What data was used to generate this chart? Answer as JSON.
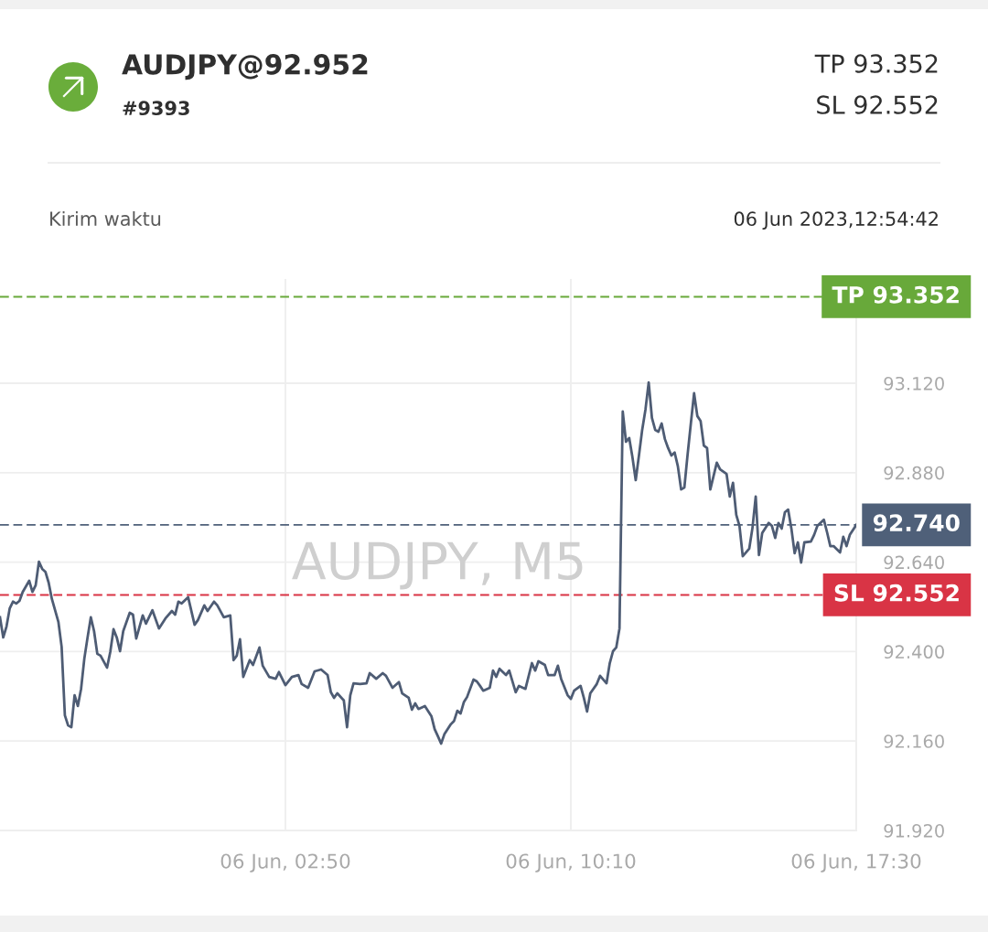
{
  "chart_data": {
    "type": "line",
    "title": "AUDJPY@92.952",
    "subtitle": "#9393",
    "annotations": [
      "TP 93.352",
      "SL 92.552",
      "Kirim waktu",
      "06 Jun 2023,12:54:42",
      "AUDJPY, M5"
    ],
    "color": "#4e5c74",
    "line_style": "solid",
    "grid": true,
    "x": [
      "2023-06-05T19:30",
      "2023-06-05T19:35",
      "2023-06-05T19:40",
      "2023-06-05T19:45",
      "2023-06-05T19:50",
      "2023-06-05T19:55",
      "2023-06-05T20:00",
      "2023-06-05T20:05",
      "2023-06-05T20:15",
      "2023-06-05T20:20",
      "2023-06-05T20:25",
      "2023-06-05T20:30",
      "2023-06-05T20:35",
      "2023-06-05T20:40",
      "2023-06-05T20:45",
      "2023-06-05T20:50",
      "2023-06-05T21:00",
      "2023-06-05T21:05",
      "2023-06-05T21:10",
      "2023-06-05T21:15",
      "2023-06-05T21:20",
      "2023-06-05T21:25",
      "2023-06-05T21:30",
      "2023-06-05T21:35",
      "2023-06-05T21:40",
      "2023-06-05T21:45",
      "2023-06-05T21:50",
      "2023-06-05T21:55",
      "2023-06-05T22:00",
      "2023-06-05T22:05",
      "2023-06-05T22:15",
      "2023-06-05T22:20",
      "2023-06-05T22:25",
      "2023-06-05T22:30",
      "2023-06-05T22:35",
      "2023-06-05T22:40",
      "2023-06-05T22:50",
      "2023-06-05T22:55",
      "2023-06-05T23:00",
      "2023-06-05T23:10",
      "2023-06-05T23:15",
      "2023-06-05T23:25",
      "2023-06-05T23:35",
      "2023-06-05T23:45",
      "2023-06-05T23:55",
      "2023-06-06T00:00",
      "2023-06-06T00:05",
      "2023-06-06T00:10",
      "2023-06-06T00:20",
      "2023-06-06T00:30",
      "2023-06-06T00:35",
      "2023-06-06T00:45",
      "2023-06-06T00:50",
      "2023-06-06T01:00",
      "2023-06-06T01:05",
      "2023-06-06T01:15",
      "2023-06-06T01:25",
      "2023-06-06T01:30",
      "2023-06-06T01:35",
      "2023-06-06T01:40",
      "2023-06-06T01:45",
      "2023-06-06T01:55",
      "2023-06-06T02:00",
      "2023-06-06T02:10",
      "2023-06-06T02:15",
      "2023-06-06T02:25",
      "2023-06-06T02:35",
      "2023-06-06T02:40",
      "2023-06-06T02:50",
      "2023-06-06T03:00",
      "2023-06-06T03:10",
      "2023-06-06T03:15",
      "2023-06-06T03:25",
      "2023-06-06T03:35",
      "2023-06-06T03:45",
      "2023-06-06T03:55",
      "2023-06-06T04:00",
      "2023-06-06T04:05",
      "2023-06-06T04:10",
      "2023-06-06T04:20",
      "2023-06-06T04:25",
      "2023-06-06T04:30",
      "2023-06-06T04:35",
      "2023-06-06T04:45",
      "2023-06-06T04:55",
      "2023-06-06T05:00",
      "2023-06-06T05:10",
      "2023-06-06T05:20",
      "2023-06-06T05:25",
      "2023-06-06T05:35",
      "2023-06-06T05:45",
      "2023-06-06T05:50",
      "2023-06-06T06:00",
      "2023-06-06T06:05",
      "2023-06-06T06:10",
      "2023-06-06T06:15",
      "2023-06-06T06:25",
      "2023-06-06T06:35",
      "2023-06-06T06:40",
      "2023-06-06T06:45",
      "2023-06-06T06:50",
      "2023-06-06T06:55",
      "2023-06-06T07:05",
      "2023-06-06T07:10",
      "2023-06-06T07:15",
      "2023-06-06T07:20",
      "2023-06-06T07:25",
      "2023-06-06T07:30",
      "2023-06-06T07:40",
      "2023-06-06T07:45",
      "2023-06-06T07:50",
      "2023-06-06T07:55",
      "2023-06-06T08:05",
      "2023-06-06T08:10",
      "2023-06-06T08:15",
      "2023-06-06T08:20",
      "2023-06-06T08:30",
      "2023-06-06T08:35",
      "2023-06-06T08:45",
      "2023-06-06T08:50",
      "2023-06-06T09:00",
      "2023-06-06T09:10",
      "2023-06-06T09:15",
      "2023-06-06T09:20",
      "2023-06-06T09:30",
      "2023-06-06T09:35",
      "2023-06-06T09:45",
      "2023-06-06T09:50",
      "2023-06-06T09:55",
      "2023-06-06T10:05",
      "2023-06-06T10:10",
      "2023-06-06T10:15",
      "2023-06-06T10:25",
      "2023-06-06T10:30",
      "2023-06-06T10:35",
      "2023-06-06T10:40",
      "2023-06-06T10:50",
      "2023-06-06T10:55",
      "2023-06-06T11:05",
      "2023-06-06T11:10",
      "2023-06-06T11:15",
      "2023-06-06T11:20",
      "2023-06-06T11:25",
      "2023-06-06T11:30",
      "2023-06-06T11:35",
      "2023-06-06T11:40",
      "2023-06-06T11:45",
      "2023-06-06T11:50",
      "2023-06-06T11:55",
      "2023-06-06T12:00",
      "2023-06-06T12:05",
      "2023-06-06T12:10",
      "2023-06-06T12:15",
      "2023-06-06T12:20",
      "2023-06-06T12:25",
      "2023-06-06T12:30",
      "2023-06-06T12:35",
      "2023-06-06T12:40",
      "2023-06-06T12:45",
      "2023-06-06T12:50",
      "2023-06-06T12:55",
      "2023-06-06T13:00",
      "2023-06-06T13:05",
      "2023-06-06T13:10",
      "2023-06-06T13:15",
      "2023-06-06T13:20",
      "2023-06-06T13:25",
      "2023-06-06T13:30",
      "2023-06-06T13:35",
      "2023-06-06T13:40",
      "2023-06-06T13:45",
      "2023-06-06T13:55",
      "2023-06-06T14:00",
      "2023-06-06T14:10",
      "2023-06-06T14:15",
      "2023-06-06T14:20",
      "2023-06-06T14:25",
      "2023-06-06T14:30",
      "2023-06-06T14:35",
      "2023-06-06T14:45",
      "2023-06-06T14:50",
      "2023-06-06T14:55",
      "2023-06-06T15:00",
      "2023-06-06T15:05",
      "2023-06-06T15:15",
      "2023-06-06T15:20",
      "2023-06-06T15:25",
      "2023-06-06T15:30",
      "2023-06-06T15:35",
      "2023-06-06T15:40",
      "2023-06-06T15:45",
      "2023-06-06T15:50",
      "2023-06-06T15:55",
      "2023-06-06T16:00",
      "2023-06-06T16:05",
      "2023-06-06T16:10",
      "2023-06-06T16:20",
      "2023-06-06T16:25",
      "2023-06-06T16:30",
      "2023-06-06T16:40",
      "2023-06-06T16:45",
      "2023-06-06T16:50",
      "2023-06-06T16:55",
      "2023-06-06T17:05",
      "2023-06-06T17:10",
      "2023-06-06T17:15",
      "2023-06-06T17:20",
      "2023-06-06T17:30"
    ],
    "values": [
      92.492,
      92.438,
      92.467,
      92.516,
      92.534,
      92.529,
      92.536,
      92.56,
      92.59,
      92.56,
      92.578,
      92.641,
      92.622,
      92.614,
      92.585,
      92.541,
      92.48,
      92.413,
      92.229,
      92.202,
      92.197,
      92.283,
      92.254,
      92.3,
      92.381,
      92.438,
      92.492,
      92.455,
      92.394,
      92.389,
      92.357,
      92.399,
      92.46,
      92.438,
      92.401,
      92.455,
      92.504,
      92.499,
      92.435,
      92.497,
      92.475,
      92.511,
      92.462,
      92.489,
      92.509,
      92.499,
      92.534,
      92.529,
      92.546,
      92.472,
      92.484,
      92.524,
      92.509,
      92.534,
      92.524,
      92.492,
      92.497,
      92.377,
      92.389,
      92.433,
      92.332,
      92.377,
      92.364,
      92.411,
      92.362,
      92.332,
      92.327,
      92.345,
      92.31,
      92.332,
      92.337,
      92.313,
      92.303,
      92.347,
      92.352,
      92.337,
      92.291,
      92.276,
      92.288,
      92.269,
      92.197,
      92.283,
      92.315,
      92.313,
      92.315,
      92.342,
      92.327,
      92.342,
      92.335,
      92.303,
      92.318,
      92.288,
      92.276,
      92.244,
      92.261,
      92.246,
      92.254,
      92.227,
      92.192,
      92.173,
      92.153,
      92.178,
      92.205,
      92.214,
      92.241,
      92.234,
      92.264,
      92.278,
      92.325,
      92.32,
      92.308,
      92.295,
      92.303,
      92.349,
      92.332,
      92.354,
      92.337,
      92.349,
      92.291,
      92.308,
      92.3,
      92.369,
      92.349,
      92.374,
      92.364,
      92.337,
      92.337,
      92.362,
      92.327,
      92.283,
      92.273,
      92.295,
      92.308,
      92.276,
      92.239,
      92.288,
      92.313,
      92.335,
      92.315,
      92.369,
      92.401,
      92.411,
      92.462,
      93.044,
      92.963,
      92.973,
      92.921,
      92.86,
      92.926,
      92.995,
      93.049,
      93.122,
      93.027,
      92.995,
      92.99,
      93.012,
      92.97,
      92.946,
      92.926,
      92.934,
      92.897,
      92.835,
      92.84,
      92.929,
      93.012,
      93.093,
      93.032,
      93.019,
      92.953,
      92.946,
      92.835,
      92.907,
      92.889,
      92.877,
      92.816,
      92.853,
      92.767,
      92.737,
      92.656,
      92.676,
      92.732,
      92.816,
      92.659,
      92.718,
      92.745,
      92.737,
      92.705,
      92.745,
      92.73,
      92.774,
      92.781,
      92.73,
      92.664,
      92.693,
      92.639,
      92.693,
      92.695,
      92.713,
      92.737,
      92.754,
      92.72,
      92.683,
      92.683,
      92.666,
      92.708,
      92.683,
      92.713,
      92.74
    ],
    "xlim": [
      "2023-06-05T19:30",
      "2023-06-06T17:30"
    ],
    "xticks": [
      {
        "value": "2023-06-06T02:50",
        "label": "06 Jun, 02:50"
      },
      {
        "value": "2023-06-06T10:10",
        "label": "06 Jun, 10:10"
      },
      {
        "value": "2023-06-06T17:30",
        "label": "06 Jun, 17:30"
      }
    ],
    "ylim": [
      91.92,
      93.4
    ],
    "yticks": [
      {
        "value": 91.92,
        "label": "91.920"
      },
      {
        "value": 92.16,
        "label": "92.160"
      },
      {
        "value": 92.4,
        "label": "92.400"
      },
      {
        "value": 92.64,
        "label": "92.640"
      },
      {
        "value": 92.88,
        "label": "92.880"
      },
      {
        "value": 93.12,
        "label": "93.120"
      }
    ],
    "ref_lines": [
      {
        "axis": "y",
        "value": 93.352,
        "label": "TP 93.352",
        "color": "#68a93a",
        "line_style": "dashed"
      },
      {
        "axis": "y",
        "value": 92.74,
        "label": "92.740",
        "color": "#4f6079",
        "line_style": "dashed"
      },
      {
        "axis": "y",
        "value": 92.552,
        "label": "SL 92.552",
        "color": "#d93445",
        "line_style": "dashed"
      }
    ]
  }
}
